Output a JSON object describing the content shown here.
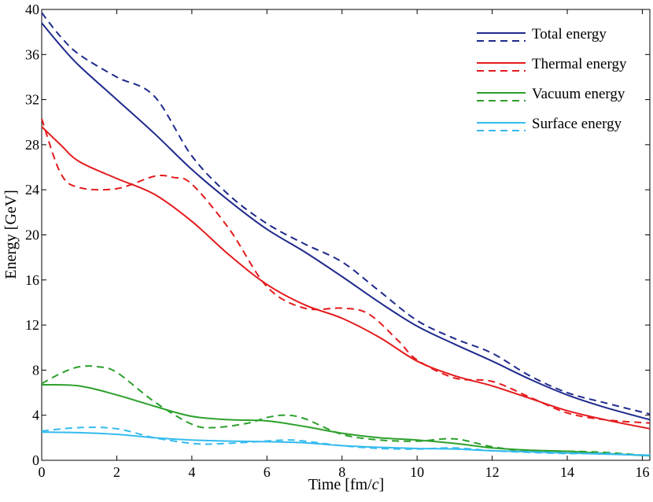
{
  "chart_data": {
    "type": "line",
    "title": "",
    "xlabel": "Time   [fm/",
    "xlabel_italic": "c",
    "xlabel_close": "]",
    "ylabel": "Energy   [GeV]",
    "xlim": [
      0,
      16.2
    ],
    "ylim": [
      0,
      40
    ],
    "xticks": [
      0,
      2,
      4,
      6,
      8,
      10,
      12,
      14,
      16
    ],
    "yticks": [
      0,
      4,
      8,
      12,
      16,
      20,
      24,
      28,
      32,
      36,
      40
    ],
    "grid": false,
    "legend_position": "top-right",
    "series": [
      {
        "name": "Total energy",
        "color": "#1f2a8c",
        "solid": [
          [
            0,
            38.8
          ],
          [
            0.5,
            36.8
          ],
          [
            1,
            35.0
          ],
          [
            2,
            32.0
          ],
          [
            3,
            29.0
          ],
          [
            4,
            25.8
          ],
          [
            5,
            23.0
          ],
          [
            6,
            20.5
          ],
          [
            7,
            18.5
          ],
          [
            8,
            16.3
          ],
          [
            9,
            14.0
          ],
          [
            10,
            11.9
          ],
          [
            11,
            10.3
          ],
          [
            12,
            8.8
          ],
          [
            13,
            7.2
          ],
          [
            14,
            5.8
          ],
          [
            15,
            4.7
          ],
          [
            16.2,
            3.6
          ]
        ],
        "dashed": [
          [
            0,
            39.7
          ],
          [
            0.5,
            37.6
          ],
          [
            1,
            36.0
          ],
          [
            2,
            34.0
          ],
          [
            3,
            32.3
          ],
          [
            4,
            27.0
          ],
          [
            5,
            23.5
          ],
          [
            6,
            21.0
          ],
          [
            7,
            19.2
          ],
          [
            8,
            17.6
          ],
          [
            9,
            15.0
          ],
          [
            10,
            12.4
          ],
          [
            11,
            10.8
          ],
          [
            12,
            9.5
          ],
          [
            13,
            7.5
          ],
          [
            14,
            6.0
          ],
          [
            15,
            5.1
          ],
          [
            16.2,
            4.1
          ]
        ]
      },
      {
        "name": "Thermal energy",
        "color": "#e41a1c",
        "solid": [
          [
            0,
            29.6
          ],
          [
            0.5,
            28.0
          ],
          [
            1,
            26.5
          ],
          [
            2,
            25.0
          ],
          [
            3,
            23.6
          ],
          [
            4,
            21.2
          ],
          [
            5,
            18.2
          ],
          [
            6,
            15.6
          ],
          [
            7,
            13.8
          ],
          [
            8,
            12.6
          ],
          [
            9,
            10.9
          ],
          [
            10,
            8.8
          ],
          [
            11,
            7.5
          ],
          [
            12,
            6.6
          ],
          [
            13,
            5.5
          ],
          [
            14,
            4.4
          ],
          [
            15,
            3.6
          ],
          [
            16.2,
            2.8
          ]
        ],
        "dashed": [
          [
            0,
            30.3
          ],
          [
            0.5,
            25.5
          ],
          [
            1,
            24.2
          ],
          [
            2,
            24.1
          ],
          [
            3,
            25.2
          ],
          [
            3.5,
            25.1
          ],
          [
            4,
            24.5
          ],
          [
            5,
            20.5
          ],
          [
            6,
            15.4
          ],
          [
            7,
            13.5
          ],
          [
            8,
            13.5
          ],
          [
            8.7,
            13.0
          ],
          [
            9.5,
            10.6
          ],
          [
            10,
            8.9
          ],
          [
            11,
            7.3
          ],
          [
            12,
            7.0
          ],
          [
            13,
            5.6
          ],
          [
            14,
            4.2
          ],
          [
            15,
            3.6
          ],
          [
            16.2,
            3.3
          ]
        ]
      },
      {
        "name": "Vacuum energy",
        "color": "#2ca02c",
        "solid": [
          [
            0,
            6.7
          ],
          [
            1,
            6.6
          ],
          [
            2,
            5.8
          ],
          [
            3,
            4.8
          ],
          [
            4,
            3.9
          ],
          [
            5,
            3.6
          ],
          [
            6,
            3.5
          ],
          [
            7,
            3.0
          ],
          [
            8,
            2.4
          ],
          [
            9,
            2.0
          ],
          [
            10,
            1.8
          ],
          [
            11,
            1.5
          ],
          [
            12,
            1.1
          ],
          [
            13,
            0.9
          ],
          [
            14,
            0.8
          ],
          [
            15,
            0.6
          ],
          [
            16.2,
            0.4
          ]
        ],
        "dashed": [
          [
            0,
            6.8
          ],
          [
            0.5,
            7.7
          ],
          [
            1,
            8.3
          ],
          [
            1.5,
            8.3
          ],
          [
            2,
            7.8
          ],
          [
            3,
            5.2
          ],
          [
            4,
            3.2
          ],
          [
            4.6,
            2.9
          ],
          [
            5.5,
            3.3
          ],
          [
            6,
            3.8
          ],
          [
            6.5,
            4.0
          ],
          [
            7,
            3.7
          ],
          [
            8,
            2.3
          ],
          [
            9,
            1.8
          ],
          [
            10,
            1.7
          ],
          [
            11,
            1.9
          ],
          [
            12,
            1.2
          ],
          [
            13,
            0.8
          ],
          [
            14,
            0.8
          ],
          [
            15,
            0.7
          ],
          [
            16.2,
            0.4
          ]
        ]
      },
      {
        "name": "Surface energy",
        "color": "#33bbee",
        "solid": [
          [
            0,
            2.5
          ],
          [
            1,
            2.45
          ],
          [
            2,
            2.3
          ],
          [
            3,
            2.0
          ],
          [
            4,
            1.8
          ],
          [
            5,
            1.7
          ],
          [
            6,
            1.65
          ],
          [
            7,
            1.55
          ],
          [
            8,
            1.3
          ],
          [
            9,
            1.15
          ],
          [
            10,
            1.05
          ],
          [
            11,
            1.0
          ],
          [
            12,
            0.85
          ],
          [
            13,
            0.75
          ],
          [
            14,
            0.65
          ],
          [
            15,
            0.55
          ],
          [
            16.2,
            0.45
          ]
        ],
        "dashed": [
          [
            0,
            2.6
          ],
          [
            1,
            2.9
          ],
          [
            2,
            2.8
          ],
          [
            3,
            2.0
          ],
          [
            4,
            1.5
          ],
          [
            4.6,
            1.45
          ],
          [
            5.5,
            1.6
          ],
          [
            6.5,
            1.8
          ],
          [
            7,
            1.7
          ],
          [
            8,
            1.3
          ],
          [
            9,
            1.05
          ],
          [
            10,
            1.0
          ],
          [
            11,
            1.1
          ],
          [
            12,
            0.85
          ],
          [
            13,
            0.7
          ],
          [
            14,
            0.6
          ],
          [
            15,
            0.6
          ],
          [
            16.2,
            0.4
          ]
        ]
      }
    ]
  }
}
